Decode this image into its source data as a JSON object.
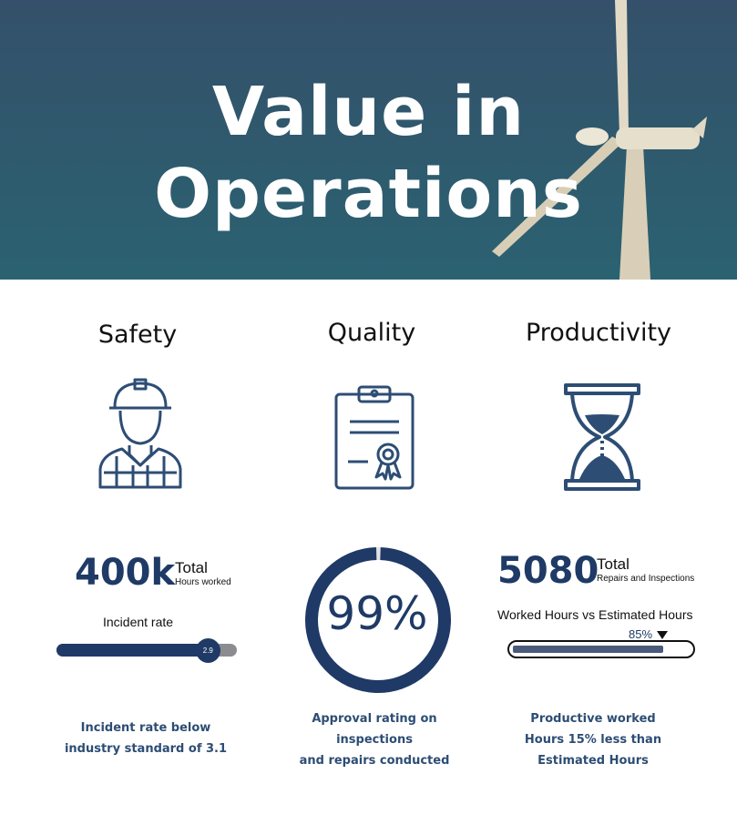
{
  "hero": {
    "title_line1": "Value in",
    "title_line2": "Operations"
  },
  "columns": {
    "safety": {
      "title": "Safety",
      "icon": "worker-hardhat-icon",
      "big_number": "400k",
      "total_label": "Total",
      "sub_label": "Hours worked",
      "metric_label": "Incident rate",
      "slider_value": "2.9",
      "slider_fraction": 0.84,
      "caption_lines": [
        "Incident rate below",
        "industry standard of 3.1"
      ]
    },
    "quality": {
      "title": "Quality",
      "icon": "clipboard-certificate-icon",
      "donut_value": "99%",
      "donut_fraction": 0.99,
      "caption_lines": [
        "Approval rating on",
        "inspections",
        "and repairs conducted"
      ]
    },
    "productivity": {
      "title": "Productivity",
      "icon": "hourglass-icon",
      "big_number": "5080",
      "total_label": "Total",
      "sub_label": "Repairs and Inspections",
      "metric_label": "Worked Hours vs Estimated Hours",
      "progress_label": "85%",
      "progress_fraction": 0.85,
      "caption_lines": [
        "Productive worked",
        "Hours 15% less than",
        "Estimated Hours"
      ]
    }
  },
  "colors": {
    "navy": "#1f3a66",
    "caption_blue": "#2d4d74",
    "track_gray": "#8c8c90"
  }
}
